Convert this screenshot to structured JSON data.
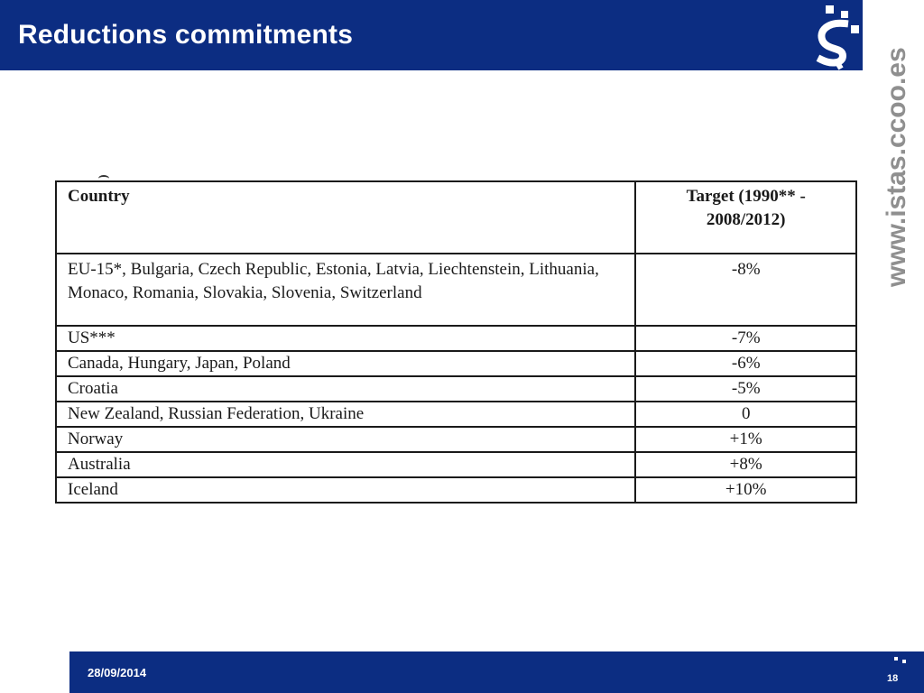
{
  "slide": {
    "title": "Reductions commitments",
    "side_url": "www.istas.ccoo.es",
    "logo_icon": "istas-logo-icon",
    "colors": {
      "brand_blue": "#0c2d82",
      "url_gray": "#8f8f8f"
    }
  },
  "table": {
    "headers": {
      "country": "Country",
      "target": "Target (1990** - 2008/2012)"
    },
    "rows": [
      {
        "country": "EU-15*, Bulgaria, Czech Republic, Estonia, Latvia, Liechtenstein, Lithuania, Monaco, Romania, Slovakia, Slovenia, Switzerland",
        "target": "-8%"
      },
      {
        "country": "US***",
        "target": "-7%"
      },
      {
        "country": "Canada, Hungary, Japan, Poland",
        "target": "-6%"
      },
      {
        "country": "Croatia",
        "target": "-5%"
      },
      {
        "country": "New Zealand, Russian Federation, Ukraine",
        "target": "0"
      },
      {
        "country": "Norway",
        "target": "+1%"
      },
      {
        "country": "Australia",
        "target": "+8%"
      },
      {
        "country": "Iceland",
        "target": "+10%"
      }
    ]
  },
  "footer": {
    "date": "28/09/2014",
    "page": "18"
  }
}
